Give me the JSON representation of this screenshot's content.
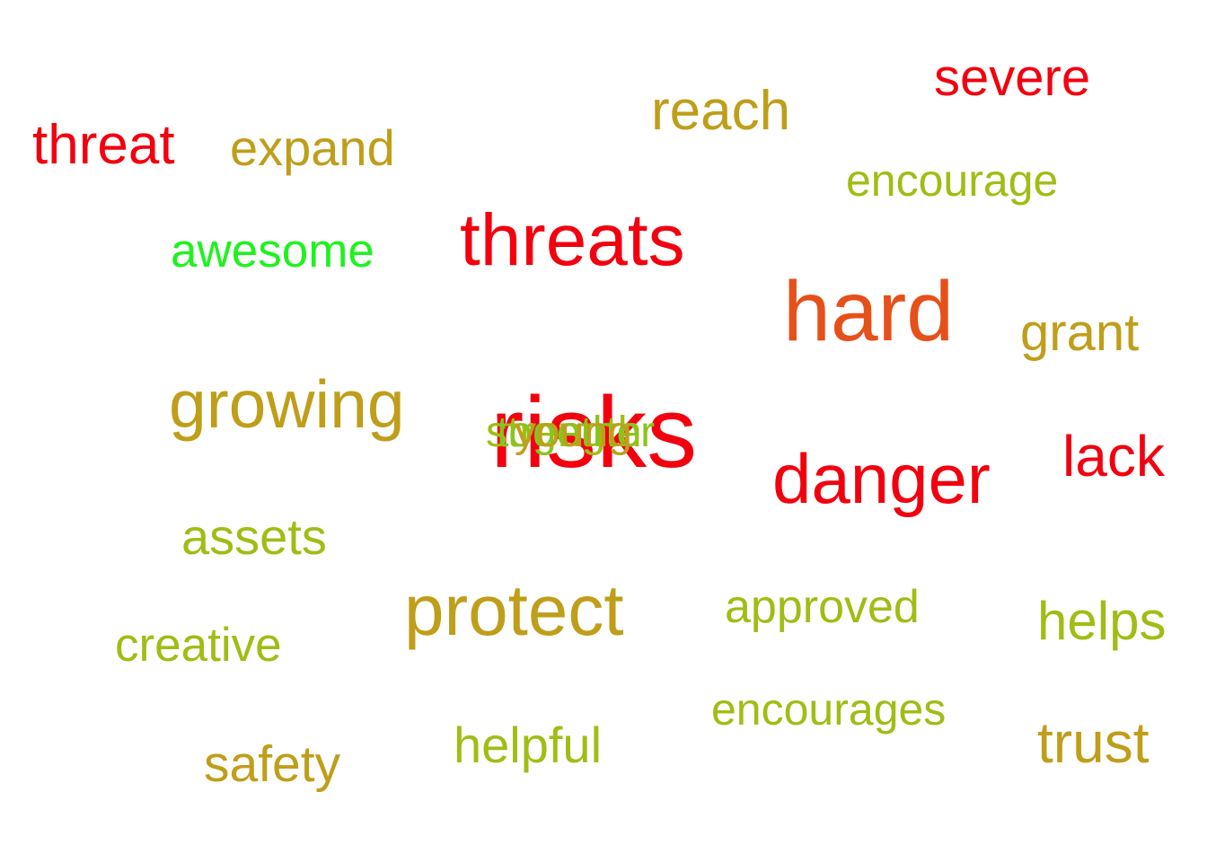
{
  "colors": {
    "red": "#f2000f",
    "orange_red": "#e6501a",
    "olive_gold": "#bf9e1a",
    "yellow_green": "#a0bd15",
    "bright_green": "#1ff21f",
    "green": "#86c51e"
  },
  "words": {
    "severe": {
      "text": "severe",
      "color": "#f2000f"
    },
    "reach": {
      "text": "reach",
      "color": "#bf9e1a"
    },
    "threat": {
      "text": "threat",
      "color": "#f2000f"
    },
    "expand": {
      "text": "expand",
      "color": "#bf9e1a"
    },
    "encourage": {
      "text": "encourage",
      "color": "#a0bd15"
    },
    "threats": {
      "text": "threats",
      "color": "#f2000f"
    },
    "awesome": {
      "text": "awesome",
      "color": "#1ff21f"
    },
    "hard": {
      "text": "hard",
      "color": "#e6501a"
    },
    "grant": {
      "text": "grant",
      "color": "#bf9e1a"
    },
    "growing": {
      "text": "growing",
      "color": "#bf9e1a"
    },
    "risks": {
      "text": "risks",
      "color": "#f2000f"
    },
    "strength": {
      "text": "strength",
      "color": "#a0bd15"
    },
    "together": {
      "text": "together",
      "color": "#86c51e"
    },
    "young": {
      "text": "young",
      "color": "#bf9e1a"
    },
    "danger": {
      "text": "danger",
      "color": "#f2000f"
    },
    "lack": {
      "text": "lack",
      "color": "#f2000f"
    },
    "assets": {
      "text": "assets",
      "color": "#a0bd15"
    },
    "protect": {
      "text": "protect",
      "color": "#bf9e1a"
    },
    "approved": {
      "text": "approved",
      "color": "#a0bd15"
    },
    "helps": {
      "text": "helps",
      "color": "#a0bd15"
    },
    "creative": {
      "text": "creative",
      "color": "#a0bd15"
    },
    "encourages": {
      "text": "encourages",
      "color": "#a0bd15"
    },
    "trust": {
      "text": "trust",
      "color": "#bf9e1a"
    },
    "helpful": {
      "text": "helpful",
      "color": "#a0bd15"
    },
    "safety": {
      "text": "safety",
      "color": "#bf9e1a"
    }
  }
}
